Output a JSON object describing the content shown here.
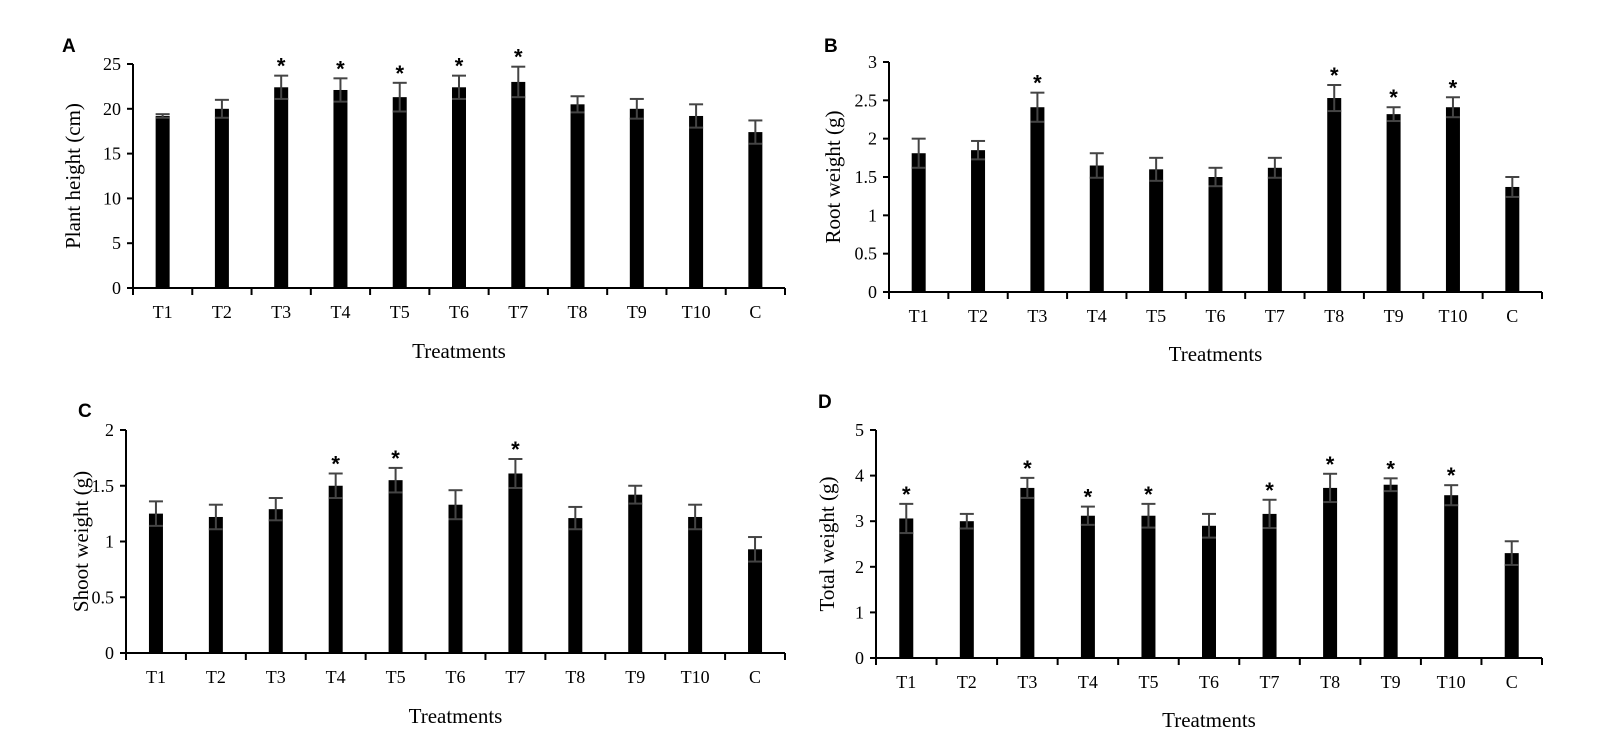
{
  "chart_data": [
    {
      "panel": "A",
      "type": "bar",
      "categories": [
        "T1",
        "T2",
        "T3",
        "T4",
        "T5",
        "T6",
        "T7",
        "T8",
        "T9",
        "T10",
        "C"
      ],
      "values": [
        19.2,
        20.0,
        22.4,
        22.1,
        21.3,
        22.4,
        23.0,
        20.5,
        20.0,
        19.2,
        17.4
      ],
      "errors": [
        0.2,
        1.0,
        1.3,
        1.3,
        1.6,
        1.3,
        1.7,
        0.9,
        1.1,
        1.3,
        1.3
      ],
      "significant": [
        false,
        false,
        true,
        true,
        true,
        true,
        true,
        false,
        false,
        false,
        false
      ],
      "xlabel": "Treatments",
      "ylabel": "Plant height (cm)",
      "ylim": [
        0,
        25
      ],
      "yticks": [
        0,
        5,
        10,
        15,
        20,
        25
      ],
      "grid": false,
      "bar_color": "#000000"
    },
    {
      "panel": "B",
      "type": "bar",
      "categories": [
        "T1",
        "T2",
        "T3",
        "T4",
        "T5",
        "T6",
        "T7",
        "T8",
        "T9",
        "T10",
        "C"
      ],
      "values": [
        1.81,
        1.85,
        2.41,
        1.65,
        1.6,
        1.5,
        1.62,
        2.53,
        2.32,
        2.41,
        1.37
      ],
      "errors": [
        0.19,
        0.12,
        0.19,
        0.16,
        0.15,
        0.12,
        0.13,
        0.17,
        0.09,
        0.13,
        0.13
      ],
      "significant": [
        false,
        false,
        true,
        false,
        false,
        false,
        false,
        true,
        true,
        true,
        false
      ],
      "xlabel": "Treatments",
      "ylabel": "Root weight (g)",
      "ylim": [
        0,
        3
      ],
      "yticks": [
        "0",
        "0.5",
        "1",
        "1.5",
        "2",
        "2.5",
        "3"
      ],
      "grid": false,
      "bar_color": "#000000"
    },
    {
      "panel": "C",
      "type": "bar",
      "categories": [
        "T1",
        "T2",
        "T3",
        "T4",
        "T5",
        "T6",
        "T7",
        "T8",
        "T9",
        "T10",
        "C"
      ],
      "values": [
        1.25,
        1.22,
        1.29,
        1.5,
        1.55,
        1.33,
        1.61,
        1.21,
        1.42,
        1.22,
        0.93
      ],
      "errors": [
        0.11,
        0.11,
        0.1,
        0.11,
        0.11,
        0.13,
        0.13,
        0.1,
        0.08,
        0.11,
        0.11
      ],
      "significant": [
        false,
        false,
        false,
        true,
        true,
        false,
        true,
        false,
        false,
        false,
        false
      ],
      "xlabel": "Treatments",
      "ylabel": "Shoot weight (g)",
      "ylim": [
        0,
        2
      ],
      "yticks": [
        "0",
        "0.5",
        "1",
        "1.5",
        "2"
      ],
      "grid": false,
      "bar_color": "#000000"
    },
    {
      "panel": "D",
      "type": "bar",
      "categories": [
        "T1",
        "T2",
        "T3",
        "T4",
        "T5",
        "T6",
        "T7",
        "T8",
        "T9",
        "T10",
        "C"
      ],
      "values": [
        3.06,
        3.0,
        3.73,
        3.12,
        3.12,
        2.9,
        3.16,
        3.73,
        3.8,
        3.57,
        2.3
      ],
      "errors": [
        0.32,
        0.16,
        0.22,
        0.2,
        0.26,
        0.26,
        0.31,
        0.31,
        0.14,
        0.22,
        0.26
      ],
      "significant": [
        true,
        false,
        true,
        true,
        true,
        false,
        true,
        true,
        true,
        true,
        false
      ],
      "xlabel": "Treatments",
      "ylabel": "Total weight (g)",
      "ylim": [
        0,
        5
      ],
      "yticks": [
        "0",
        "1",
        "2",
        "3",
        "4",
        "5"
      ],
      "grid": false,
      "bar_color": "#000000"
    }
  ],
  "significance_marker": "*"
}
